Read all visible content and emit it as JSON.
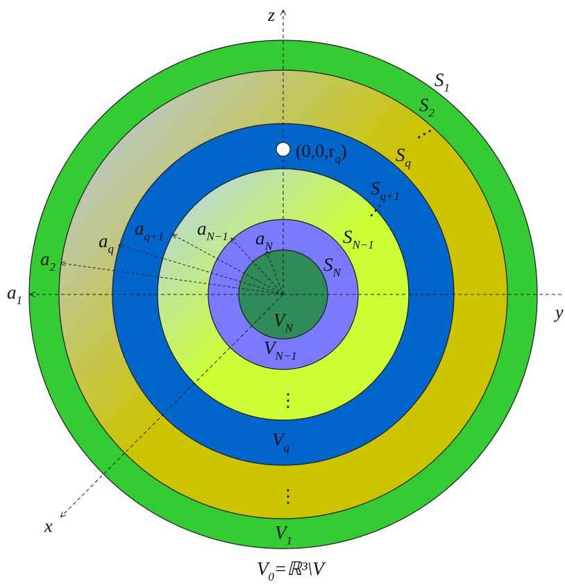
{
  "labels": {
    "axis_z": "z",
    "axis_y": "y",
    "axis_x": "x",
    "S1": "S",
    "S1_sub": "1",
    "S2": "S",
    "S2_sub": "2",
    "Sq": "S",
    "Sq_sub": "q",
    "Sq1": "S",
    "Sq1_sub": "q+1",
    "SN1": "S",
    "SN1_sub": "N−1",
    "SN": "S",
    "SN_sub": "N",
    "a1": "a",
    "a1_sub": "1",
    "a2": "a",
    "a2_sub": "2",
    "aq": "a",
    "aq_sub": "q",
    "aq1": "a",
    "aq1_sub": "q+1",
    "aN1": "a",
    "aN1_sub": "N−1",
    "aN": "a",
    "aN_sub": "N",
    "VN": "V",
    "VN_sub": "N",
    "VN1": "V",
    "VN1_sub": "N−1",
    "Vq": "V",
    "Vq_sub": "q",
    "V1": "V",
    "V1_sub": "1",
    "V0": "V",
    "V0_sub": "0",
    "V0_rest": "=ℝ³\\V",
    "point": "(0,0,r",
    "point_sub": "q",
    "point_close": ")"
  },
  "colors": {
    "outer_shell": "#33cc33",
    "shell_2_outer": "#cdc400",
    "shell_2_inner": "#b9c8c8",
    "blue_shell": "#0066cc",
    "lime_outer": "#ccff33",
    "lime_inner": "#b9d6d8",
    "lavender": "#7a7aff",
    "core": "#2e8b57",
    "point": "#ffffff"
  }
}
